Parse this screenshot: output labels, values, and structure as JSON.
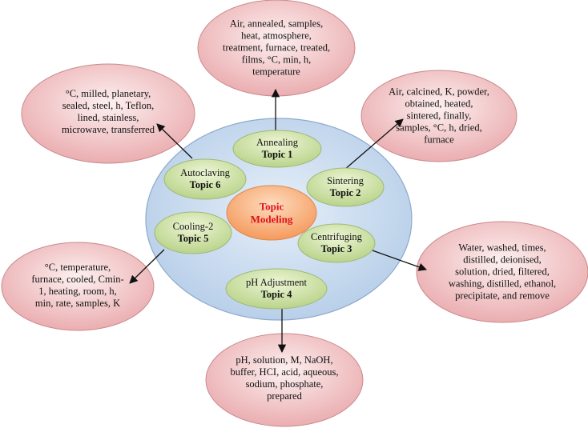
{
  "center": {
    "line1": "Topic",
    "line2": "Modeling"
  },
  "topics": [
    {
      "name": "Annealing",
      "num": "Topic 1"
    },
    {
      "name": "Sintering",
      "num": "Topic 2"
    },
    {
      "name": "Centrifuging",
      "num": "Topic 3"
    },
    {
      "name": "pH Adjustment",
      "num": "Topic 4"
    },
    {
      "name": "Cooling-2",
      "num": "Topic 5"
    },
    {
      "name": "Autoclaving",
      "num": "Topic 6"
    }
  ],
  "keywords": [
    {
      "lines": [
        "Air, annealed, samples,",
        "heat, atmosphere,",
        "treatment, furnace, treated,",
        "films, °C, min, h,",
        "temperature"
      ]
    },
    {
      "lines": [
        "Air, calcined, K, powder,",
        "obtained, heated,",
        "sintered, finally,",
        "samples, °C, h, dried,",
        "furnace"
      ]
    },
    {
      "lines": [
        "Water, washed, times,",
        "distilled, deionised,",
        "solution, dried, filtered,",
        "washing, distilled, ethanol,",
        "precipitate, and remove"
      ]
    },
    {
      "lines": [
        "pH, solution, M, NaOH,",
        "buffer, HCI, acid, aqueous,",
        "sodium, phosphate,",
        "prepared"
      ]
    },
    {
      "lines": [
        "°C, temperature,",
        "furnace, cooled, Cmin-",
        "1, heating, room, h,",
        "min, rate, samples, K"
      ]
    },
    {
      "lines": [
        "°C, milled, planetary,",
        "sealed, steel, h, Teflon,",
        "lined, stainless,",
        "microwave, transferred"
      ]
    }
  ],
  "colors": {
    "big_circle": "#c9dcf0",
    "topic_fill": "#d3e6a8",
    "center_fill": "#f7b27c",
    "keyword_fill": "#f4c7c9",
    "center_text": "#e0101a"
  }
}
